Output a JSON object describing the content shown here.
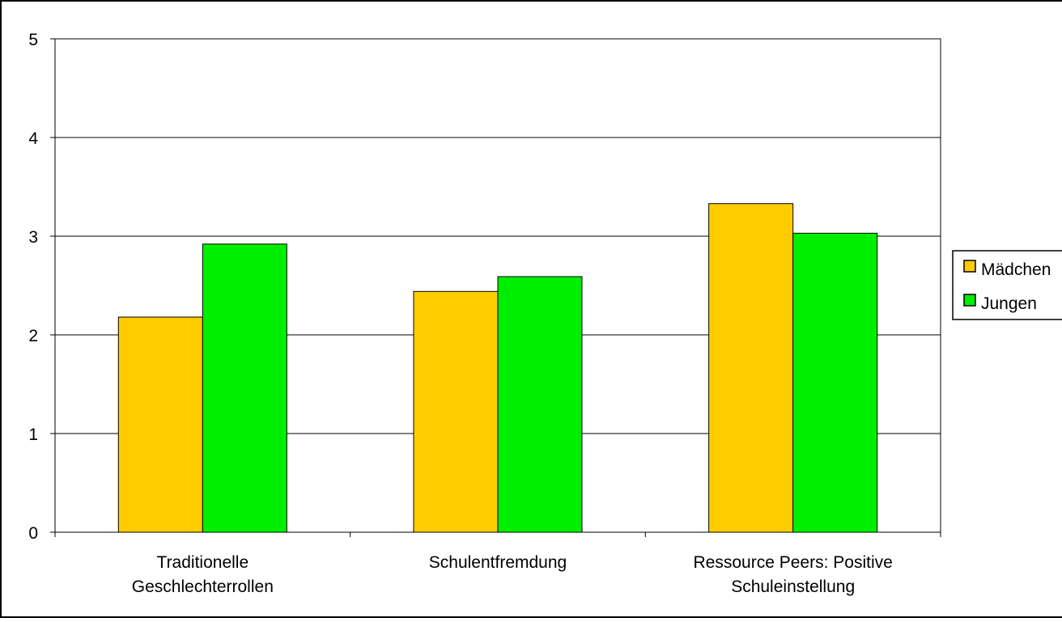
{
  "chart_data": {
    "type": "bar",
    "title": "",
    "xlabel": "",
    "ylabel": "",
    "categories": [
      [
        "Traditionelle",
        "Geschlechterrollen"
      ],
      [
        "Schulentfremdung"
      ],
      [
        "Ressource Peers: Positive",
        "Schuleinstellung"
      ]
    ],
    "series": [
      {
        "name": "Mädchen",
        "color": "#FFCC00",
        "values": [
          2.18,
          2.44,
          3.33
        ]
      },
      {
        "name": "Jungen",
        "color": "#00EE00",
        "values": [
          2.92,
          2.59,
          3.03
        ]
      }
    ],
    "ylim": [
      0,
      5
    ],
    "yticks": [
      "0",
      "1",
      "2",
      "3",
      "4",
      "5"
    ],
    "grid": true,
    "legend_position": "right"
  }
}
